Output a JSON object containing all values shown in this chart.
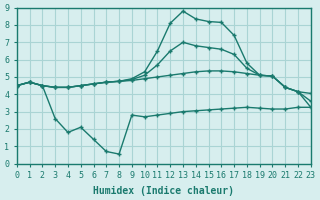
{
  "xlabel": "Humidex (Indice chaleur)",
  "ylabel": "",
  "bg_color": "#d7eeee",
  "grid_color": "#aad4d4",
  "line_color": "#1a7a6e",
  "xlim": [
    0,
    23
  ],
  "ylim": [
    0,
    9
  ],
  "xticks": [
    0,
    1,
    2,
    3,
    4,
    5,
    6,
    7,
    8,
    9,
    10,
    11,
    12,
    13,
    14,
    15,
    16,
    17,
    18,
    19,
    20,
    21,
    22,
    23
  ],
  "yticks": [
    0,
    1,
    2,
    3,
    4,
    5,
    6,
    7,
    8,
    9
  ],
  "line1_x": [
    0,
    1,
    2,
    3,
    4,
    5,
    6,
    7,
    8,
    9,
    10,
    11,
    12,
    13,
    14,
    15,
    16,
    17,
    18,
    19,
    20,
    21,
    22,
    23
  ],
  "line1_y": [
    4.5,
    4.7,
    4.5,
    4.4,
    4.4,
    4.5,
    4.6,
    4.7,
    4.75,
    4.8,
    4.9,
    5.0,
    5.1,
    5.2,
    5.3,
    5.35,
    5.35,
    5.3,
    5.2,
    5.1,
    5.05,
    4.4,
    4.15,
    4.05
  ],
  "line2_x": [
    0,
    1,
    2,
    3,
    4,
    5,
    6,
    7,
    8,
    9,
    10,
    11,
    12,
    13,
    14,
    15,
    16,
    17,
    18,
    19,
    20,
    21,
    22,
    23
  ],
  "line2_y": [
    4.5,
    4.7,
    4.5,
    4.4,
    4.4,
    4.5,
    4.6,
    4.7,
    4.75,
    4.9,
    5.3,
    6.5,
    8.1,
    8.8,
    8.35,
    8.2,
    8.15,
    7.4,
    5.8,
    5.1,
    5.05,
    4.4,
    4.15,
    3.25
  ],
  "line3_x": [
    0,
    1,
    2,
    3,
    4,
    5,
    6,
    7,
    8,
    9,
    10,
    11,
    12,
    13,
    14,
    15,
    16,
    17,
    18,
    19,
    20,
    21,
    22,
    23
  ],
  "line3_y": [
    4.5,
    4.7,
    4.5,
    2.6,
    1.8,
    2.1,
    1.4,
    0.7,
    0.55,
    2.8,
    2.7,
    2.8,
    2.9,
    3.0,
    3.05,
    3.1,
    3.15,
    3.2,
    3.25,
    3.2,
    3.15,
    3.15,
    3.25,
    3.25
  ],
  "line4_x": [
    0,
    1,
    2,
    3,
    4,
    5,
    6,
    7,
    8,
    9,
    10,
    11,
    12,
    13,
    14,
    15,
    16,
    17,
    18,
    19,
    20,
    21,
    22,
    23
  ],
  "line4_y": [
    4.5,
    4.7,
    4.5,
    4.4,
    4.4,
    4.5,
    4.6,
    4.7,
    4.75,
    4.85,
    5.1,
    5.7,
    6.5,
    7.0,
    6.8,
    6.7,
    6.6,
    6.3,
    5.5,
    5.1,
    5.05,
    4.4,
    4.15,
    3.6
  ]
}
